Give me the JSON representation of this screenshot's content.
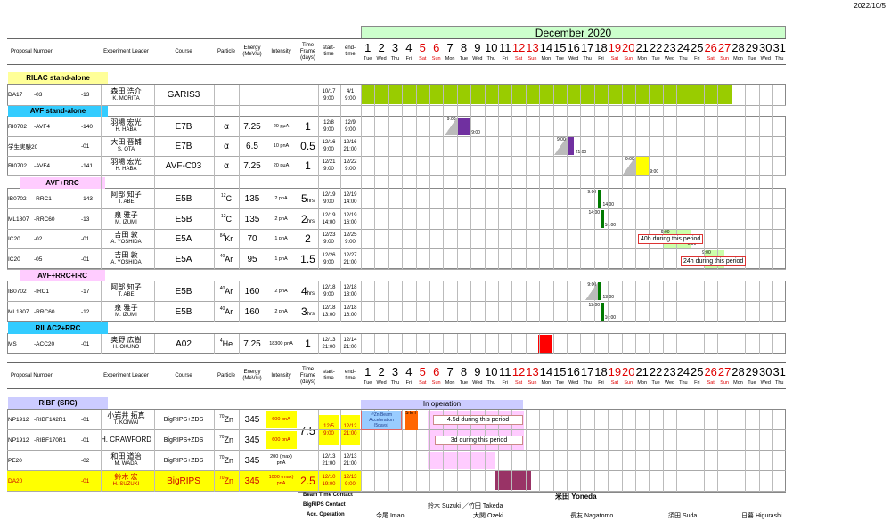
{
  "print_date": "2022/10/5",
  "month_title": "December 2020",
  "headers": {
    "proposal": "Proposal Number",
    "leader": "Experiment Leader",
    "course": "Course",
    "particle": "Particle",
    "energy": "Energy (MeV/u)",
    "intensity": "Intensity",
    "timeframe": "Time Frame (days)",
    "start": "start- time",
    "end": "end- time"
  },
  "days": [
    "1",
    "2",
    "3",
    "4",
    "5",
    "6",
    "7",
    "8",
    "9",
    "10",
    "11",
    "12",
    "13",
    "14",
    "15",
    "16",
    "17",
    "18",
    "19",
    "20",
    "21",
    "22",
    "23",
    "24",
    "25",
    "26",
    "27",
    "28",
    "29",
    "30",
    "31"
  ],
  "weekdays": [
    "Tue",
    "Wed",
    "Thu",
    "Fri",
    "Sat",
    "Sun",
    "Mon",
    "Tue",
    "Wed",
    "Thu",
    "Fri",
    "Sat",
    "Sun",
    "Mon",
    "Tue",
    "Wed",
    "Thu",
    "Fri",
    "Sat",
    "Sun",
    "Mon",
    "Tue",
    "Wed",
    "Thu",
    "Fri",
    "Sat",
    "Sun",
    "Mon",
    "Tue",
    "Wed",
    "Thu"
  ],
  "red_days": [
    "5",
    "6",
    "12",
    "13",
    "19",
    "20",
    "26",
    "27"
  ],
  "sections": {
    "rilac": "RILAC stand-alone",
    "avf": "AVF stand-alone",
    "avfrrc": "AVF+RRC",
    "avfrrcirc": "AVF+RRC+IRC",
    "rilac2": "RILAC2+RRC",
    "ribf": "RIBF (SRC)"
  },
  "rows": [
    {
      "id": "DA17",
      "a": "-03",
      "b": "-13",
      "lj": "森田 浩介",
      "le": "K. MORITA",
      "course": "GARIS3",
      "particle": "",
      "energy": "",
      "intensity": "",
      "tf": "",
      "sd": "10/17",
      "st": "9:00",
      "ed": "4/1",
      "et": "9:00"
    },
    {
      "id": "RI0702",
      "a": "-AVF4",
      "b": "-140",
      "lj": "羽場 宏光",
      "le": "H. HABA",
      "course": "E7B",
      "particle": "α",
      "energy": "7.25",
      "intensity": "20 pμA",
      "tf": "1",
      "sd": "12/8",
      "st": "9:00",
      "ed": "12/9",
      "et": "9:00"
    },
    {
      "id": "学生実験20",
      "a": "",
      "b": "-01",
      "lj": "大田 晋輔",
      "le": "S. OTA",
      "course": "E7B",
      "particle": "α",
      "energy": "6.5",
      "intensity": "10 pnA",
      "tf": "0.5",
      "sd": "12/16",
      "st": "9:00",
      "ed": "12/16",
      "et": "21:00"
    },
    {
      "id": "RI0702",
      "a": "-AVF4",
      "b": "-141",
      "lj": "羽場 宏光",
      "le": "H. HABA",
      "course": "AVF-C03",
      "particle": "α",
      "energy": "7.25",
      "intensity": "20 pμA",
      "tf": "1",
      "sd": "12/21",
      "st": "9:00",
      "ed": "12/22",
      "et": "9:00"
    },
    {
      "id": "IB0702",
      "a": "-RRC1",
      "b": "-143",
      "lj": "阿部 知子",
      "le": "T. ABE",
      "course": "E5B",
      "pm": "12",
      "pe": "C",
      "energy": "135",
      "intensity": "2 pnA",
      "tf": "5",
      "tfu": "hrs",
      "sd": "12/19",
      "st": "9:00",
      "ed": "12/19",
      "et": "14:00"
    },
    {
      "id": "ML1807",
      "a": "-RRC60",
      "b": "-13",
      "lj": "泉 雅子",
      "le": "M. IZUMI",
      "course": "E5B",
      "pm": "12",
      "pe": "C",
      "energy": "135",
      "intensity": "2 pnA",
      "tf": "2",
      "tfu": "hrs",
      "sd": "12/19",
      "st": "14:00",
      "ed": "12/19",
      "et": "16:00"
    },
    {
      "id": "IC20",
      "a": "-02",
      "b": "-01",
      "lj": "吉田 敦",
      "le": "A. YOSHIDA",
      "course": "E5A",
      "pm": "84",
      "pe": "Kr",
      "energy": "70",
      "intensity": "1 pnA",
      "tf": "2",
      "sd": "12/23",
      "st": "9:00",
      "ed": "12/25",
      "et": "9:00"
    },
    {
      "id": "IC20",
      "a": "-05",
      "b": "-01",
      "lj": "吉田 敦",
      "le": "A. YOSHIDA",
      "course": "E5A",
      "pm": "40",
      "pe": "Ar",
      "energy": "95",
      "intensity": "1 pnA",
      "tf": "1.5",
      "sd": "12/26",
      "st": "9:00",
      "ed": "12/27",
      "et": "21:00"
    },
    {
      "id": "IB0702",
      "a": "-IRC1",
      "b": "-17",
      "lj": "阿部 知子",
      "le": "T. ABE",
      "course": "E5B",
      "pm": "40",
      "pe": "Ar",
      "energy": "160",
      "intensity": "2 pnA",
      "tf": "4",
      "tfu": "hrs",
      "sd": "12/18",
      "st": "9:00",
      "ed": "12/18",
      "et": "13:00"
    },
    {
      "id": "ML1807",
      "a": "-RRC60",
      "b": "-12",
      "lj": "泉 雅子",
      "le": "M. IZUMI",
      "course": "E5B",
      "pm": "40",
      "pe": "Ar",
      "energy": "160",
      "intensity": "2 pnA",
      "tf": "3",
      "tfu": "hrs",
      "sd": "12/18",
      "st": "13:00",
      "ed": "12/18",
      "et": "16:00"
    },
    {
      "id": "MS",
      "a": "-ACC20",
      "b": "-01",
      "lj": "奥野 広樹",
      "le": "H. OKUNO",
      "course": "A02",
      "pm": "4",
      "pe": "He",
      "energy": "7.25",
      "intensity": "18300 pnA",
      "tf": "1",
      "sd": "12/13",
      "st": "21:00",
      "ed": "12/14",
      "et": "21:00"
    },
    {
      "id": "NP1912",
      "a": "-RIBF142R1",
      "b": "-01",
      "lj": "小岩井 拓真",
      "le": "T. KOIWAI",
      "course": "BigRIPS+ZDS",
      "pm": "70",
      "pe": "Zn",
      "energy": "345",
      "intensity": "600 pnA",
      "tf": "",
      "sd": "",
      "st": "",
      "ed": "",
      "et": ""
    },
    {
      "id": "NP1912",
      "a": "-RIBF170R1",
      "b": "-01",
      "lj": "",
      "le": "H. CRAWFORD",
      "course": "BigRIPS+ZDS",
      "pm": "70",
      "pe": "Zn",
      "energy": "345",
      "intensity": "600 pnA",
      "tf": "",
      "sd": "",
      "st": "",
      "ed": "",
      "et": ""
    },
    {
      "id": "PE20",
      "a": "",
      "b": "-02",
      "lj": "和田 道治",
      "le": "M. WADA",
      "course": "BigRIPS+ZDS",
      "pm": "70",
      "pe": "Zn",
      "energy": "345",
      "intensity": "200 (max) pnA",
      "tf": "",
      "sd": "12/13",
      "st": "21:00",
      "ed": "12/13",
      "et": "21:00"
    },
    {
      "id": "DA20",
      "a": "",
      "b": "-01",
      "lj": "鈴木 宏",
      "le": "H. SUZUKI",
      "course": "BigRIPS",
      "pm": "70",
      "pe": "Zn",
      "energy": "345",
      "intensity": "1000 (max) pnA",
      "tf": "2.5",
      "sd": "12/10",
      "st": "19:00",
      "ed": "12/13",
      "et": "9:00"
    }
  ],
  "ribf_group": {
    "tf": "7.5",
    "sd": "12/5",
    "st": "9:00",
    "ed": "12/12",
    "et": "21:00"
  },
  "overlays": {
    "avf_40h": "40h during this period",
    "avf_24h": "24h during this period",
    "in_operation": "In operation",
    "zn_accel": "⁷⁰Zn Beam Acceleration (5days)",
    "set": "S E T",
    "p45": "4.5d during this period",
    "p3": "3d during this period"
  },
  "bar_labels": {
    "b1s": "9:00",
    "b1e": "9:00",
    "b2s": "9:00",
    "b2e": "21:00",
    "b3s": "9:00",
    "b3e": "9:00",
    "b4s": "9:00",
    "b4e": "14:00",
    "b5s": "14:00",
    "b5e": "16:00",
    "b6s": "9:00",
    "b6e": "9:00",
    "b7s": "9:00",
    "b7e": "21:00",
    "b8s": "9:00",
    "b8e": "13:00",
    "b9s": "13:00",
    "b9e": "16:00"
  },
  "footer": {
    "bt_label": "Beam Time Contact",
    "bt_value": "米田 Yoneda",
    "br_label": "BigRIPS Contact",
    "br_value": "鈴木 Suzuki ／竹田 Takeda",
    "acc_label": "Acc. Operation",
    "acc": [
      "今尾 Imao",
      "大関 Ozeki",
      "長友 Nagatomo",
      "須田 Suda",
      "日暮 Higurashi"
    ]
  },
  "colors": {
    "green": "#99cc00",
    "purple": "#7030a0",
    "yellow": "#ffff00",
    "darkgreen": "#007a00",
    "lightgreen": "#ccffaa",
    "red": "#ff0000",
    "lavender": "#ccccff",
    "pink": "#ffccff",
    "maroon": "#993366",
    "orange": "#ff6600",
    "cyan": "#33ccff",
    "rilac_yellow": "#ffff99",
    "month_bg": "#ccffcc"
  }
}
